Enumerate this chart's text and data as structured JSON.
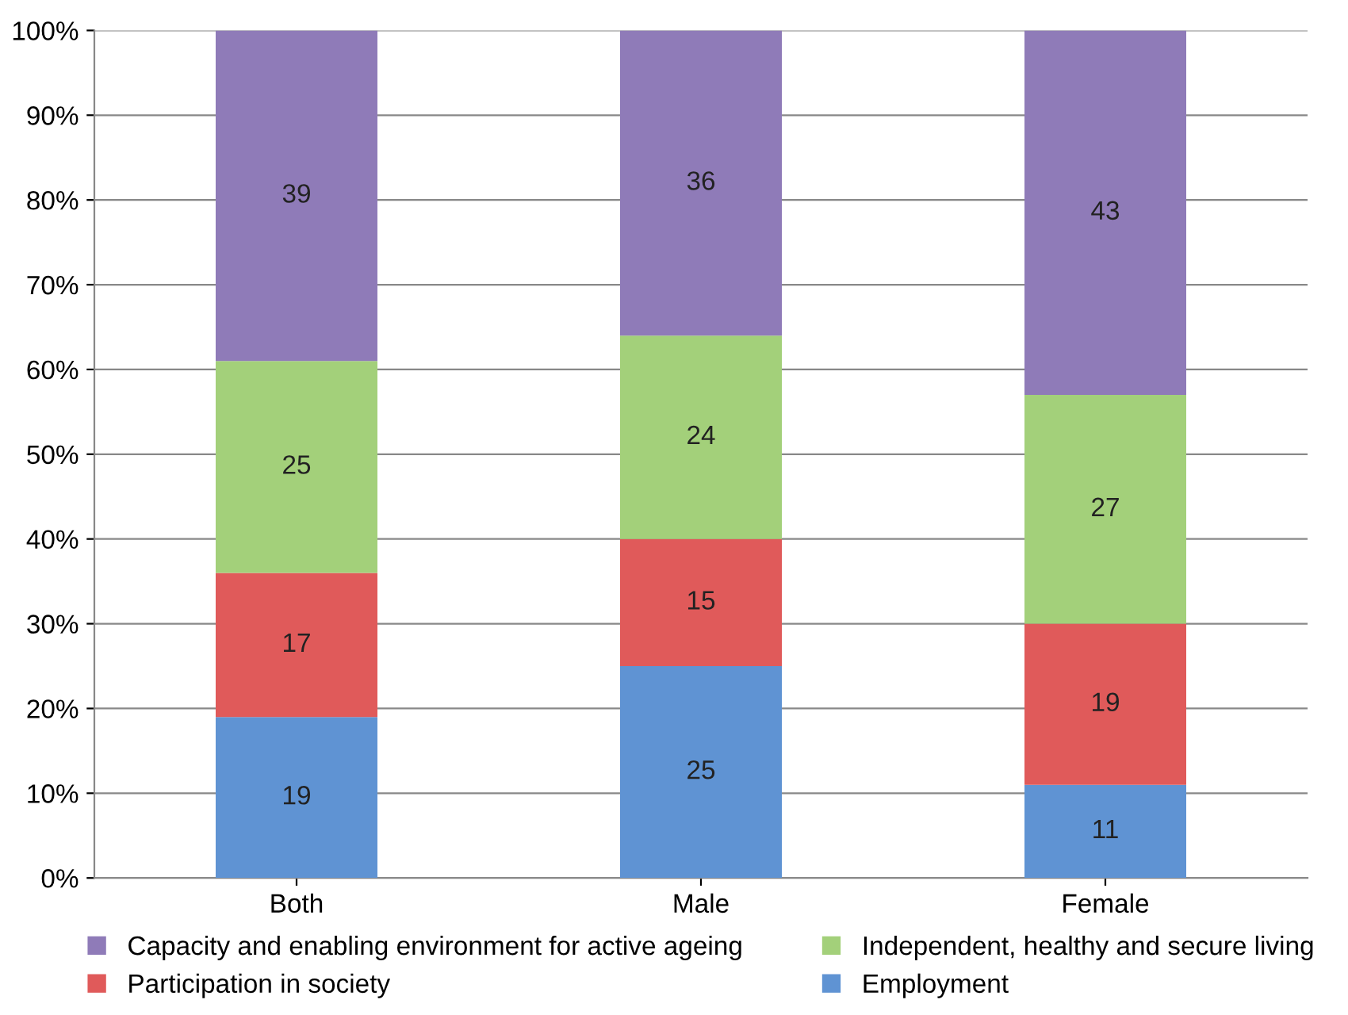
{
  "chart_data": {
    "type": "bar",
    "stacked": true,
    "categories": [
      "Both",
      "Male",
      "Female"
    ],
    "series": [
      {
        "name": "Employment",
        "color": "#5f93d3",
        "values": [
          19,
          25,
          11
        ]
      },
      {
        "name": "Participation in society",
        "color": "#e05a5a",
        "values": [
          17,
          15,
          19
        ]
      },
      {
        "name": "Independent, healthy and secure living",
        "color": "#a3d07a",
        "values": [
          25,
          24,
          27
        ]
      },
      {
        "name": "Capacity and enabling environment for active ageing",
        "color": "#8f7bb8",
        "values": [
          39,
          36,
          43
        ]
      }
    ],
    "ylim": [
      0,
      100
    ],
    "yticks": [
      {
        "value": 0,
        "label": "0%"
      },
      {
        "value": 10,
        "label": "10%"
      },
      {
        "value": 20,
        "label": "20%"
      },
      {
        "value": 30,
        "label": "30%"
      },
      {
        "value": 40,
        "label": "40%"
      },
      {
        "value": 50,
        "label": "50%"
      },
      {
        "value": 60,
        "label": "60%"
      },
      {
        "value": 70,
        "label": "70%"
      },
      {
        "value": 80,
        "label": "80%"
      },
      {
        "value": 90,
        "label": "90%"
      },
      {
        "value": 100,
        "label": "100%"
      }
    ],
    "grid": "y",
    "legend": "bottom",
    "data_labels": true
  }
}
